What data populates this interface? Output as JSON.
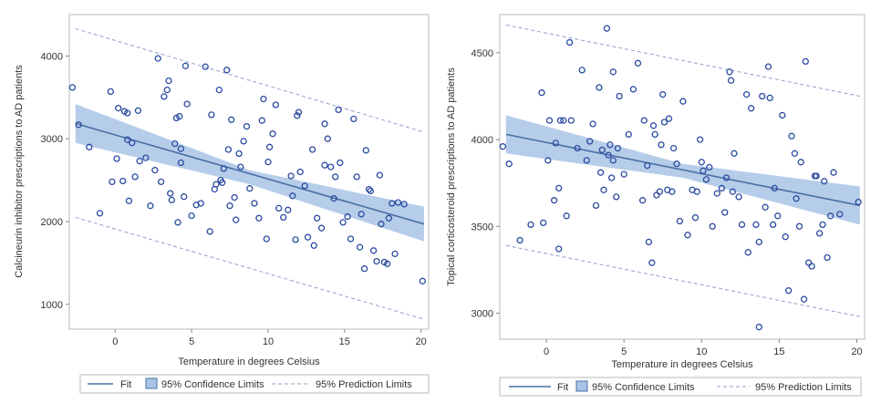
{
  "colors": {
    "point": "#2a4aa0",
    "fit": "#4a6fa5",
    "band": "#a9c4e6",
    "prediction": "#8f9fcf"
  },
  "legend": {
    "fit": "Fit",
    "confidence": "95% Confidence Limits",
    "prediction": "95% Prediction Limits"
  },
  "chart_data": [
    {
      "type": "scatter",
      "title": "",
      "xlabel": "Temperature in degrees Celsius",
      "ylabel": "Calcineurin inhibitor prescriptions to AD patients",
      "xlim": [
        -3,
        20.5
      ],
      "ylim": [
        700,
        4500
      ],
      "xticks": [
        0,
        5,
        10,
        15,
        20
      ],
      "yticks": [
        1000,
        2000,
        3000,
        4000
      ],
      "fit": {
        "x": [
          -2.6,
          20.2
        ],
        "y": [
          3185,
          1970
        ]
      },
      "confidence": {
        "x": [
          -2.6,
          8.8,
          20.2
        ],
        "upper": [
          3420,
          2620,
          2180
        ],
        "lower": [
          2950,
          2450,
          1760
        ]
      },
      "prediction": {
        "upper": {
          "x": [
            -2.6,
            20.2
          ],
          "y": [
            4330,
            3080
          ]
        },
        "lower": {
          "x": [
            -2.6,
            20.2
          ],
          "y": [
            2050,
            820
          ]
        }
      },
      "points": [
        [
          -2.8,
          3620
        ],
        [
          -2.4,
          3170
        ],
        [
          -1.7,
          2900
        ],
        [
          -1.0,
          2100
        ],
        [
          -0.3,
          3570
        ],
        [
          -0.2,
          2480
        ],
        [
          0.1,
          2760
        ],
        [
          0.2,
          3370
        ],
        [
          0.5,
          2490
        ],
        [
          0.6,
          3330
        ],
        [
          0.8,
          3310
        ],
        [
          0.8,
          2990
        ],
        [
          0.9,
          2250
        ],
        [
          1.1,
          2950
        ],
        [
          1.3,
          2540
        ],
        [
          1.5,
          3340
        ],
        [
          1.6,
          2730
        ],
        [
          2.0,
          2770
        ],
        [
          2.3,
          2190
        ],
        [
          2.6,
          2620
        ],
        [
          2.8,
          3970
        ],
        [
          3.0,
          2480
        ],
        [
          3.2,
          3510
        ],
        [
          3.4,
          3590
        ],
        [
          3.5,
          3700
        ],
        [
          3.6,
          2340
        ],
        [
          3.7,
          2260
        ],
        [
          3.9,
          2940
        ],
        [
          4.0,
          3250
        ],
        [
          4.1,
          1990
        ],
        [
          4.2,
          3270
        ],
        [
          4.3,
          2710
        ],
        [
          4.3,
          2880
        ],
        [
          4.5,
          2300
        ],
        [
          4.6,
          3880
        ],
        [
          4.7,
          3420
        ],
        [
          5.0,
          2070
        ],
        [
          5.3,
          2200
        ],
        [
          5.6,
          2220
        ],
        [
          5.9,
          3870
        ],
        [
          6.2,
          1880
        ],
        [
          6.3,
          3290
        ],
        [
          6.5,
          2390
        ],
        [
          6.6,
          2450
        ],
        [
          6.8,
          3590
        ],
        [
          6.9,
          2500
        ],
        [
          7.0,
          2470
        ],
        [
          7.1,
          2640
        ],
        [
          7.3,
          3830
        ],
        [
          7.4,
          2870
        ],
        [
          7.5,
          2190
        ],
        [
          7.6,
          3230
        ],
        [
          7.8,
          2290
        ],
        [
          7.9,
          2020
        ],
        [
          8.1,
          2820
        ],
        [
          8.2,
          2660
        ],
        [
          8.4,
          2970
        ],
        [
          8.6,
          3150
        ],
        [
          8.8,
          2400
        ],
        [
          9.1,
          2220
        ],
        [
          9.4,
          2040
        ],
        [
          9.6,
          3220
        ],
        [
          9.7,
          3480
        ],
        [
          9.9,
          1790
        ],
        [
          10.0,
          2720
        ],
        [
          10.1,
          2900
        ],
        [
          10.3,
          3060
        ],
        [
          10.5,
          3410
        ],
        [
          10.7,
          2160
        ],
        [
          11.0,
          2050
        ],
        [
          11.3,
          2140
        ],
        [
          11.5,
          2550
        ],
        [
          11.6,
          2310
        ],
        [
          11.8,
          1780
        ],
        [
          11.9,
          3280
        ],
        [
          12.0,
          3320
        ],
        [
          12.1,
          2600
        ],
        [
          12.4,
          2430
        ],
        [
          12.6,
          1810
        ],
        [
          12.9,
          2870
        ],
        [
          13.0,
          1710
        ],
        [
          13.2,
          2040
        ],
        [
          13.5,
          1920
        ],
        [
          13.7,
          3180
        ],
        [
          13.7,
          2680
        ],
        [
          13.9,
          3000
        ],
        [
          14.1,
          2660
        ],
        [
          14.3,
          2280
        ],
        [
          14.4,
          2540
        ],
        [
          14.6,
          3350
        ],
        [
          14.7,
          2710
        ],
        [
          14.9,
          1990
        ],
        [
          15.2,
          2060
        ],
        [
          15.4,
          1790
        ],
        [
          15.6,
          3240
        ],
        [
          15.8,
          2540
        ],
        [
          16.0,
          1690
        ],
        [
          16.1,
          2090
        ],
        [
          16.3,
          1430
        ],
        [
          16.4,
          2860
        ],
        [
          16.6,
          2390
        ],
        [
          16.7,
          2370
        ],
        [
          16.9,
          1650
        ],
        [
          17.1,
          1520
        ],
        [
          17.3,
          2560
        ],
        [
          17.4,
          1970
        ],
        [
          17.6,
          1510
        ],
        [
          17.8,
          1490
        ],
        [
          17.9,
          2040
        ],
        [
          18.1,
          2220
        ],
        [
          18.3,
          1610
        ],
        [
          18.5,
          2230
        ],
        [
          18.9,
          2210
        ],
        [
          20.1,
          1280
        ]
      ]
    },
    {
      "type": "scatter",
      "title": "",
      "xlabel": "Temperature in degrees Celsius",
      "ylabel": "Topical corticosteroid prescriptions to AD patients",
      "xlim": [
        -3,
        20.5
      ],
      "ylim": [
        2850,
        4720
      ],
      "xticks": [
        0,
        5,
        10,
        15,
        20
      ],
      "yticks": [
        3000,
        3500,
        4000,
        4500
      ],
      "fit": {
        "x": [
          -2.6,
          20.2
        ],
        "y": [
          4030,
          3620
        ]
      },
      "confidence": {
        "x": [
          -2.6,
          8.8,
          20.2
        ],
        "upper": [
          4140,
          3860,
          3730
        ],
        "lower": [
          3920,
          3780,
          3510
        ]
      },
      "prediction": {
        "upper": {
          "x": [
            -2.6,
            20.2
          ],
          "y": [
            4660,
            4250
          ]
        },
        "lower": {
          "x": [
            -2.6,
            20.2
          ],
          "y": [
            3390,
            2980
          ]
        }
      },
      "points": [
        [
          -2.8,
          3960
        ],
        [
          -2.4,
          3860
        ],
        [
          -1.7,
          3420
        ],
        [
          -1.0,
          3510
        ],
        [
          -0.3,
          4270
        ],
        [
          -0.2,
          3520
        ],
        [
          0.1,
          3880
        ],
        [
          0.2,
          4110
        ],
        [
          0.5,
          3650
        ],
        [
          0.6,
          3980
        ],
        [
          0.8,
          3720
        ],
        [
          0.8,
          3370
        ],
        [
          0.9,
          4110
        ],
        [
          1.1,
          4110
        ],
        [
          1.3,
          3560
        ],
        [
          1.5,
          4560
        ],
        [
          1.6,
          4110
        ],
        [
          2.0,
          3950
        ],
        [
          2.3,
          4400
        ],
        [
          2.6,
          3880
        ],
        [
          2.8,
          3990
        ],
        [
          3.0,
          4090
        ],
        [
          3.2,
          3620
        ],
        [
          3.4,
          4300
        ],
        [
          3.5,
          3810
        ],
        [
          3.6,
          3940
        ],
        [
          3.7,
          3710
        ],
        [
          3.9,
          4640
        ],
        [
          4.0,
          3910
        ],
        [
          4.1,
          3970
        ],
        [
          4.2,
          3780
        ],
        [
          4.3,
          3880
        ],
        [
          4.3,
          4390
        ],
        [
          4.5,
          3670
        ],
        [
          4.6,
          3950
        ],
        [
          4.7,
          4250
        ],
        [
          5.0,
          3800
        ],
        [
          5.3,
          4030
        ],
        [
          5.6,
          4290
        ],
        [
          5.9,
          4440
        ],
        [
          6.2,
          3650
        ],
        [
          6.3,
          4110
        ],
        [
          6.5,
          3850
        ],
        [
          6.6,
          3410
        ],
        [
          6.8,
          3290
        ],
        [
          6.9,
          4080
        ],
        [
          7.0,
          4030
        ],
        [
          7.1,
          3680
        ],
        [
          7.3,
          3700
        ],
        [
          7.4,
          3970
        ],
        [
          7.5,
          4260
        ],
        [
          7.6,
          4100
        ],
        [
          7.8,
          3710
        ],
        [
          7.9,
          4120
        ],
        [
          8.1,
          3700
        ],
        [
          8.2,
          3950
        ],
        [
          8.4,
          3860
        ],
        [
          8.6,
          3530
        ],
        [
          8.8,
          4220
        ],
        [
          9.1,
          3450
        ],
        [
          9.4,
          3710
        ],
        [
          9.6,
          3550
        ],
        [
          9.7,
          3700
        ],
        [
          9.9,
          4000
        ],
        [
          10.0,
          3870
        ],
        [
          10.1,
          3820
        ],
        [
          10.3,
          3770
        ],
        [
          10.5,
          3840
        ],
        [
          10.7,
          3500
        ],
        [
          11.0,
          3690
        ],
        [
          11.3,
          3720
        ],
        [
          11.5,
          3580
        ],
        [
          11.6,
          3780
        ],
        [
          11.8,
          4390
        ],
        [
          11.9,
          4340
        ],
        [
          12.0,
          3700
        ],
        [
          12.1,
          3920
        ],
        [
          12.4,
          3670
        ],
        [
          12.6,
          3510
        ],
        [
          12.9,
          4260
        ],
        [
          13.0,
          3350
        ],
        [
          13.2,
          4180
        ],
        [
          13.5,
          3510
        ],
        [
          13.7,
          2920
        ],
        [
          13.7,
          3410
        ],
        [
          13.9,
          4250
        ],
        [
          14.1,
          3610
        ],
        [
          14.3,
          4420
        ],
        [
          14.4,
          4240
        ],
        [
          14.6,
          3510
        ],
        [
          14.7,
          3720
        ],
        [
          14.9,
          3560
        ],
        [
          15.2,
          4140
        ],
        [
          15.4,
          3440
        ],
        [
          15.6,
          3130
        ],
        [
          15.8,
          4020
        ],
        [
          16.0,
          3920
        ],
        [
          16.1,
          3660
        ],
        [
          16.3,
          3500
        ],
        [
          16.4,
          3870
        ],
        [
          16.6,
          3080
        ],
        [
          16.7,
          4450
        ],
        [
          16.9,
          3290
        ],
        [
          17.1,
          3270
        ],
        [
          17.3,
          3790
        ],
        [
          17.4,
          3790
        ],
        [
          17.6,
          3460
        ],
        [
          17.8,
          3510
        ],
        [
          17.9,
          3760
        ],
        [
          18.1,
          3320
        ],
        [
          18.3,
          3560
        ],
        [
          18.5,
          3810
        ],
        [
          18.9,
          3570
        ],
        [
          20.1,
          3640
        ]
      ]
    }
  ]
}
